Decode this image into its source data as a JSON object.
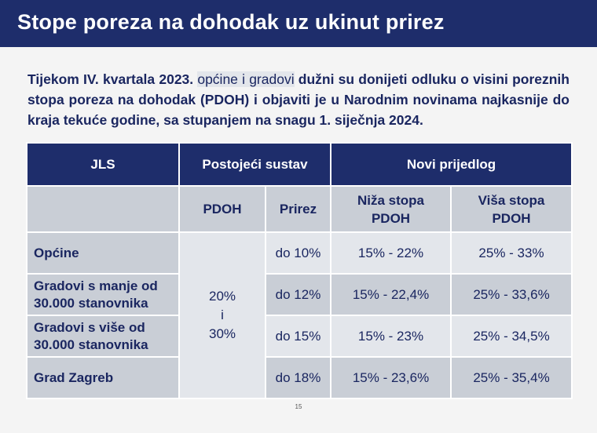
{
  "title": "Stope poreza na dohodak uz ukinut prirez",
  "intro": {
    "part1": "Tijekom IV. kvartala 2023.",
    "part2": "općine i gradovi",
    "part3": "dužni su donijeti odluku o visini poreznih stopa poreza na dohodak (PDOH) i objaviti je u Narodnim novinama najkasnije do kraja tekuće godine, sa stupanjem na snagu 1. siječnja 2024."
  },
  "table": {
    "head1": {
      "jls": "JLS",
      "existing": "Postojeći sustav",
      "proposal": "Novi prijedlog"
    },
    "head2": {
      "pdoh": "PDOH",
      "prirez": "Prirez",
      "lower_l1": "Niža stopa",
      "lower_l2": "PDOH",
      "higher_l1": "Viša stopa",
      "higher_l2": "PDOH"
    },
    "pdoh_existing": {
      "l1": "20%",
      "l2": "i",
      "l3": "30%"
    },
    "rows": [
      {
        "name_l1": "Općine",
        "name_l2": "",
        "prirez": "do 10%",
        "lower": "15% - 22%",
        "higher": "25% - 33%"
      },
      {
        "name_l1": "Gradovi s manje od",
        "name_l2": "30.000 stanovnika",
        "prirez": "do 12%",
        "lower": "15% - 22,4%",
        "higher": "25% - 33,6%"
      },
      {
        "name_l1": "Gradovi s više od",
        "name_l2": "30.000 stanovnika",
        "prirez": "do 15%",
        "lower": "15% - 23%",
        "higher": "25% - 34,5%"
      },
      {
        "name_l1": "Grad Zagreb",
        "name_l2": "",
        "prirez": "do 18%",
        "lower": "15% - 23,6%",
        "higher": "25% - 35,4%"
      }
    ]
  },
  "page_number": "15",
  "colors": {
    "header_blue": "#1e2d6b",
    "text_blue": "#1a2660",
    "gray_cell": "#c9ced6",
    "light_cell": "#e3e6eb"
  }
}
